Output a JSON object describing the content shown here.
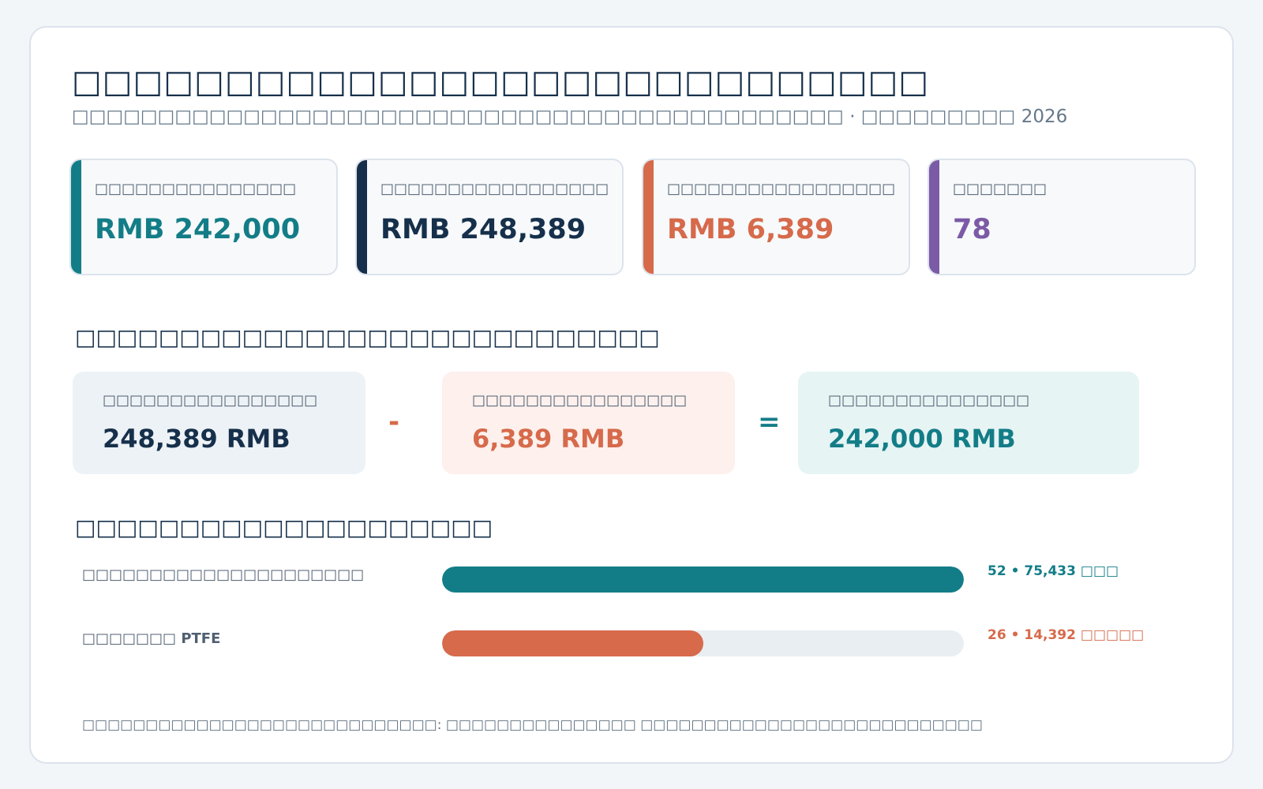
{
  "header": {
    "title": "□□□□□□□□□□□□□□□□□□□□□□□□□□□□",
    "subtitle": "□□□□□□□□□□□□□□□□□□□□□□□□□□□□□□□□□□□□□□□□□□□□□ · □□□□□□□□□ 2026"
  },
  "kpis": [
    {
      "label": "□□□□□□□□□□□□□□□",
      "value": "RMB 242,000",
      "color": "#137d87"
    },
    {
      "label": "□□□□□□□□□□□□□□□□□",
      "value": "RMB 248,389",
      "color": "#16304b"
    },
    {
      "label": "□□□□□□□□□□□□□□□□□",
      "value": "RMB 6,389",
      "color": "#d66a4b"
    },
    {
      "label": "□□□□□□□",
      "value": "78",
      "color": "#7b5aa6"
    }
  ],
  "equation": {
    "title": "□□□□□□□□□□□□□□□□□□□□□□□□□□□□",
    "minus_sign": "-",
    "equals_sign": "=",
    "boxes": [
      {
        "label": "□□□□□□□□□□□□□□□□",
        "value": "248,389 RMB",
        "color": "#16304b",
        "bg": "#edf2f6"
      },
      {
        "label": "□□□□□□□□□□□□□□□□",
        "value": "6,389 RMB",
        "color": "#d66a4b",
        "bg": "#fdf0ed"
      },
      {
        "label": "□□□□□□□□□□□□□□□",
        "value": "242,000 RMB",
        "color": "#137d87",
        "bg": "#e6f4f4"
      }
    ]
  },
  "distribution": {
    "title": "□□□□□□□□□□□□□□□□□□□□",
    "rows": [
      {
        "label": "□□□□□□□□□□□□□□□□□□□□□",
        "note": "52 • 75,433 □□□",
        "fill_fraction": 1.0,
        "color": "#137d87"
      },
      {
        "label": "□□□□□□□ PTFE",
        "note": "26 • 14,392 □□□□□",
        "fill_fraction": 0.5,
        "color": "#d66a4b"
      }
    ]
  },
  "footnote": "□□□□□□□□□□□□□□□□□□□□□□□□□□□□: □□□□□□□□□□□□□□□ □□□□□□□□□□□□□□□□□□□□□□□□□□□"
}
